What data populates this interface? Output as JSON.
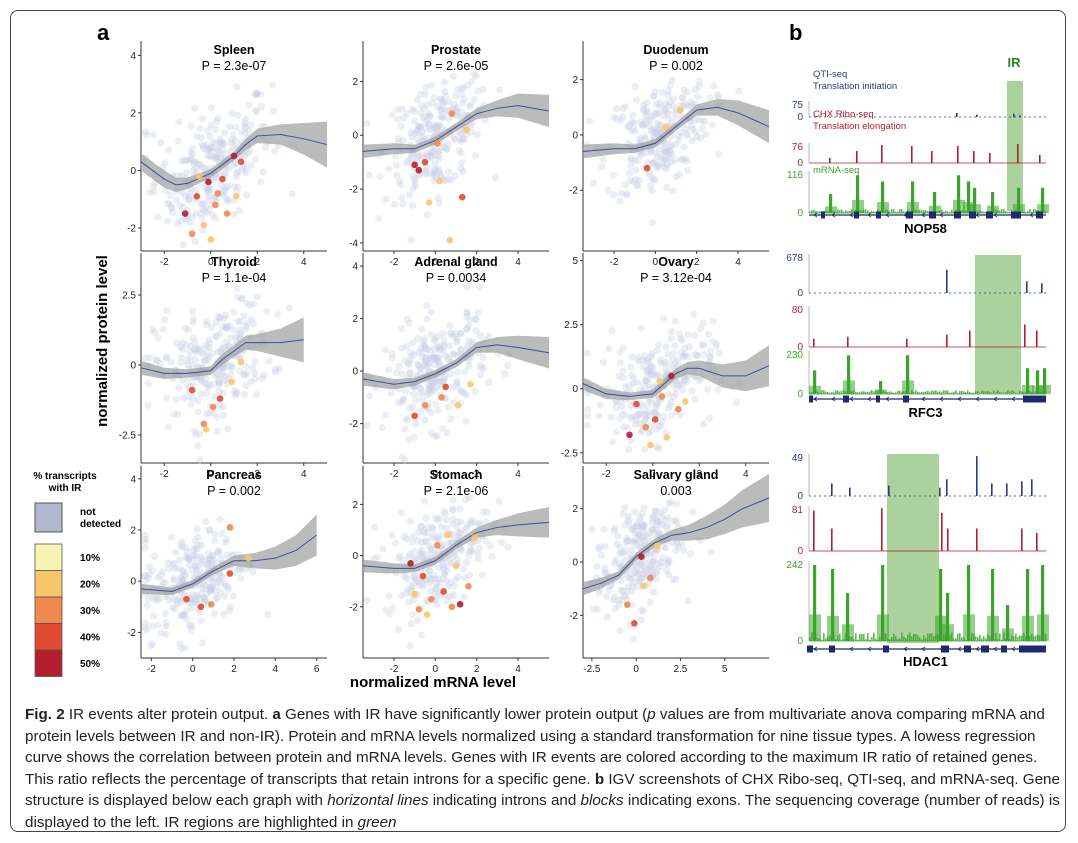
{
  "panel_labels": {
    "a": "a",
    "b": "b"
  },
  "axes": {
    "ylabel": "normalized protein level",
    "xlabel": "normalized mRNA level"
  },
  "legend": {
    "title_line1": "% transcripts",
    "title_line2": "with IR",
    "not_detected_line1": "not",
    "not_detected_line2": "detected",
    "items": [
      {
        "label": "10%",
        "color": "#f8f4b4"
      },
      {
        "label": "20%",
        "color": "#f9c56b"
      },
      {
        "label": "30%",
        "color": "#f0894e"
      },
      {
        "label": "40%",
        "color": "#e14a32"
      },
      {
        "label": "50%",
        "color": "#b21e2b"
      }
    ],
    "not_detected_color": "#b3b8d2"
  },
  "colors": {
    "point_gray": "#c9cfe6",
    "curve": "#3a4fa0",
    "ci_band": "#9e9e9e",
    "ir_highlight": "#9cc98b",
    "qti": "#273a8c",
    "chx": "#b21e2b",
    "mrna": "#3aa52a"
  },
  "chart_data": [
    {
      "type": "scatter",
      "title": "Spleen",
      "pvalue": "P = 2.3e-07",
      "xlim": [
        -3,
        5
      ],
      "ylim": [
        -2.8,
        4.5
      ],
      "xticks": [
        -2,
        0,
        2,
        4
      ],
      "yticks": [
        -2,
        0,
        2,
        4
      ],
      "curve_x": [
        -3,
        -2,
        -1.5,
        -1,
        0,
        1,
        1.5,
        2,
        3,
        4,
        5
      ],
      "curve_y": [
        0.3,
        -0.3,
        -0.5,
        -0.45,
        -0.1,
        0.5,
        0.9,
        1.2,
        1.25,
        1.1,
        0.9
      ],
      "band": [
        0.3,
        0.3,
        0.25,
        0.2,
        0.15,
        0.15,
        0.2,
        0.25,
        0.35,
        0.55,
        0.8
      ],
      "ir_points": [
        [
          -1.1,
          -1.5,
          5
        ],
        [
          -0.1,
          -0.4,
          5
        ],
        [
          1.0,
          0.5,
          5
        ],
        [
          1.3,
          0.3,
          4
        ],
        [
          0.5,
          -0.3,
          4
        ],
        [
          -0.6,
          -0.9,
          4
        ],
        [
          0.2,
          -1.2,
          3
        ],
        [
          -0.8,
          -2.2,
          3
        ],
        [
          0.7,
          -1.5,
          3
        ],
        [
          0.3,
          -0.8,
          3
        ],
        [
          -0.3,
          -1.9,
          2
        ],
        [
          1.1,
          -0.9,
          2
        ],
        [
          0.0,
          -2.4,
          2
        ],
        [
          -0.5,
          -0.2,
          2
        ]
      ]
    },
    {
      "type": "scatter",
      "title": "Prostate",
      "pvalue": "P = 2.6e-05",
      "xlim": [
        -3.5,
        5.5
      ],
      "ylim": [
        -4.3,
        3.5
      ],
      "xticks": [
        -2,
        0,
        2,
        4
      ],
      "yticks": [
        -4,
        -2,
        0,
        2
      ],
      "curve_x": [
        -3.5,
        -2,
        -1,
        0,
        1,
        2,
        3,
        4,
        5.5
      ],
      "curve_y": [
        -0.6,
        -0.5,
        -0.5,
        -0.2,
        0.3,
        0.8,
        1.0,
        1.1,
        0.9
      ],
      "band": [
        0.25,
        0.2,
        0.15,
        0.15,
        0.15,
        0.2,
        0.3,
        0.45,
        0.6
      ],
      "ir_points": [
        [
          -1.0,
          -1.1,
          5
        ],
        [
          -0.8,
          -1.3,
          5
        ],
        [
          1.3,
          -2.3,
          4
        ],
        [
          -0.5,
          -1.0,
          4
        ],
        [
          0.1,
          -0.3,
          3
        ],
        [
          0.8,
          0.8,
          3
        ],
        [
          -0.3,
          -2.5,
          2
        ],
        [
          0.7,
          -3.9,
          2
        ],
        [
          1.5,
          0.2,
          2
        ],
        [
          0.2,
          -1.7,
          2
        ]
      ]
    },
    {
      "type": "scatter",
      "title": "Duodenum",
      "pvalue": "P = 0.002",
      "xlim": [
        -3.5,
        5.5
      ],
      "ylim": [
        -4.2,
        3.4
      ],
      "xticks": [
        -2,
        0,
        2,
        4
      ],
      "yticks": [
        -2,
        0,
        2
      ],
      "curve_x": [
        -3.5,
        -2,
        -1,
        0,
        1,
        2,
        3,
        4,
        5.5
      ],
      "curve_y": [
        -0.6,
        -0.5,
        -0.5,
        -0.3,
        0.3,
        0.9,
        1.0,
        0.8,
        0.3
      ],
      "band": [
        0.25,
        0.2,
        0.15,
        0.15,
        0.15,
        0.2,
        0.3,
        0.45,
        0.6
      ],
      "ir_points": [
        [
          -0.4,
          -1.2,
          4
        ],
        [
          1.2,
          0.9,
          2
        ],
        [
          0.5,
          0.3,
          2
        ]
      ]
    },
    {
      "type": "scatter",
      "title": "Thyroid",
      "pvalue": "P = 1.1e-04",
      "xlim": [
        -3,
        5
      ],
      "ylim": [
        -3.5,
        4
      ],
      "xticks": [
        -2,
        0,
        2,
        4
      ],
      "yticks": [
        -2.5,
        0,
        2.5
      ],
      "curve_x": [
        -3,
        -2,
        -1,
        0,
        0.5,
        1,
        1.5,
        2,
        3,
        4
      ],
      "curve_y": [
        -0.1,
        -0.3,
        -0.3,
        -0.2,
        0.2,
        0.5,
        0.8,
        0.8,
        0.8,
        0.9
      ],
      "band": [
        0.25,
        0.2,
        0.15,
        0.15,
        0.2,
        0.2,
        0.25,
        0.3,
        0.5,
        0.8
      ],
      "ir_points": [
        [
          -0.8,
          -0.9,
          4
        ],
        [
          0.4,
          -1.2,
          4
        ],
        [
          0.1,
          -1.5,
          3
        ],
        [
          -0.3,
          -2.1,
          3
        ],
        [
          -0.2,
          -2.3,
          2
        ],
        [
          0.9,
          -0.6,
          2
        ],
        [
          1.3,
          0.1,
          2
        ]
      ]
    },
    {
      "type": "scatter",
      "title": "Adrenal gland",
      "pvalue": "P = 0.0034",
      "xlim": [
        -3.5,
        5.5
      ],
      "ylim": [
        -3.5,
        4.5
      ],
      "xticks": [
        -2,
        0,
        2,
        4
      ],
      "yticks": [
        -2,
        0,
        2,
        4
      ],
      "curve_x": [
        -3.5,
        -2,
        -1,
        0,
        1,
        2,
        3,
        4,
        5.5
      ],
      "curve_y": [
        -0.3,
        -0.5,
        -0.4,
        -0.1,
        0.3,
        0.9,
        1.0,
        0.9,
        0.7
      ],
      "band": [
        0.25,
        0.2,
        0.15,
        0.15,
        0.15,
        0.2,
        0.3,
        0.45,
        0.6
      ],
      "ir_points": [
        [
          -1.0,
          -1.7,
          4
        ],
        [
          0.5,
          -0.6,
          4
        ],
        [
          -0.5,
          -1.3,
          3
        ],
        [
          0.3,
          -1.0,
          3
        ],
        [
          1.1,
          -1.3,
          2
        ],
        [
          1.7,
          -0.5,
          2
        ]
      ]
    },
    {
      "type": "scatter",
      "title": "Ovary",
      "pvalue": "P = 3.12e-04",
      "xlim": [
        -3,
        5
      ],
      "ylim": [
        -2.9,
        5.3
      ],
      "xticks": [
        -2,
        0,
        2,
        4
      ],
      "yticks": [
        -2.5,
        0,
        2.5,
        5
      ],
      "curve_x": [
        -3,
        -2,
        -1,
        0,
        0.5,
        1,
        1.5,
        2,
        3,
        4,
        5
      ],
      "curve_y": [
        0.2,
        -0.2,
        -0.3,
        -0.2,
        0.2,
        0.6,
        0.8,
        0.8,
        0.5,
        0.5,
        0.9
      ],
      "band": [
        0.25,
        0.2,
        0.15,
        0.15,
        0.2,
        0.2,
        0.25,
        0.3,
        0.45,
        0.6,
        0.8
      ],
      "ir_points": [
        [
          -1.0,
          -1.8,
          5
        ],
        [
          0.8,
          0.5,
          5
        ],
        [
          0.1,
          -1.2,
          4
        ],
        [
          -0.7,
          -0.6,
          4
        ],
        [
          0.4,
          -0.3,
          3
        ],
        [
          -0.3,
          -1.5,
          3
        ],
        [
          1.1,
          -0.8,
          3
        ],
        [
          0.6,
          -1.9,
          2
        ],
        [
          -0.1,
          -2.2,
          2
        ],
        [
          1.4,
          -0.5,
          2
        ],
        [
          0.3,
          0.3,
          2
        ]
      ]
    },
    {
      "type": "scatter",
      "title": "Pancreas",
      "pvalue": "P = 0.002",
      "xlim": [
        -2.5,
        6.5
      ],
      "ylim": [
        -3,
        4.5
      ],
      "xticks": [
        -2,
        0,
        2,
        4,
        6
      ],
      "yticks": [
        -2,
        0,
        2,
        4
      ],
      "curve_x": [
        -2.5,
        -1,
        0,
        1,
        2,
        3,
        4,
        5,
        6
      ],
      "curve_y": [
        -0.3,
        -0.4,
        -0.1,
        0.4,
        0.8,
        0.8,
        0.9,
        1.2,
        1.8
      ],
      "band": [
        0.2,
        0.15,
        0.15,
        0.15,
        0.2,
        0.3,
        0.45,
        0.6,
        0.8
      ],
      "ir_points": [
        [
          0.4,
          -1.0,
          4
        ],
        [
          -0.3,
          -0.7,
          4
        ],
        [
          1.8,
          0.3,
          4
        ],
        [
          0.9,
          -0.9,
          3
        ],
        [
          1.8,
          2.1,
          3
        ],
        [
          2.7,
          0.9,
          2
        ]
      ]
    },
    {
      "type": "scatter",
      "title": "Stomach",
      "pvalue": "P = 2.1e-06",
      "xlim": [
        -3.5,
        5.5
      ],
      "ylim": [
        -4,
        3.5
      ],
      "xticks": [
        -2,
        0,
        2,
        4
      ],
      "yticks": [
        -2,
        0,
        2
      ],
      "curve_x": [
        -3.5,
        -2,
        -1,
        0,
        1,
        2,
        3,
        4,
        5.5
      ],
      "curve_y": [
        -0.4,
        -0.5,
        -0.5,
        -0.2,
        0.4,
        0.9,
        1.1,
        1.2,
        1.3
      ],
      "band": [
        0.25,
        0.2,
        0.15,
        0.15,
        0.15,
        0.2,
        0.3,
        0.45,
        0.6
      ],
      "ir_points": [
        [
          -1.2,
          -0.3,
          5
        ],
        [
          1.2,
          -1.9,
          5
        ],
        [
          0.4,
          -1.4,
          4
        ],
        [
          -0.6,
          -0.8,
          4
        ],
        [
          0.8,
          -2.0,
          3
        ],
        [
          -0.2,
          -1.7,
          3
        ],
        [
          1.6,
          -1.2,
          3
        ],
        [
          0.1,
          0.4,
          3
        ],
        [
          -0.8,
          -2.1,
          3
        ],
        [
          1.0,
          -0.4,
          2
        ],
        [
          -0.4,
          -2.3,
          2
        ],
        [
          0.6,
          0.8,
          2
        ],
        [
          1.9,
          0.7,
          2
        ],
        [
          -1.0,
          -1.5,
          2
        ]
      ]
    },
    {
      "type": "scatter",
      "title": "Salivary gland",
      "pvalue": "0.003",
      "xlim": [
        -3,
        7.5
      ],
      "ylim": [
        -3.6,
        3.6
      ],
      "xticks": [
        -2.5,
        0,
        2.5,
        5
      ],
      "yticks": [
        -2,
        0,
        2
      ],
      "curve_x": [
        -3,
        -2,
        -1,
        0,
        1,
        2,
        3,
        4,
        5,
        6,
        7.5
      ],
      "curve_y": [
        -1.0,
        -0.8,
        -0.5,
        0.2,
        0.7,
        1.0,
        1.1,
        1.3,
        1.6,
        2.0,
        2.4
      ],
      "band": [
        0.25,
        0.2,
        0.15,
        0.15,
        0.15,
        0.2,
        0.3,
        0.45,
        0.55,
        0.7,
        0.9
      ],
      "ir_points": [
        [
          0.3,
          0.2,
          5
        ],
        [
          -0.1,
          -2.3,
          4
        ],
        [
          0.8,
          -0.6,
          3
        ],
        [
          -0.5,
          -1.6,
          3
        ],
        [
          1.2,
          0.6,
          2
        ],
        [
          0.4,
          -0.9,
          2
        ]
      ]
    }
  ],
  "igv": {
    "ir_label": "IR",
    "genes": [
      {
        "name": "NOP58",
        "tracks": [
          {
            "kind": "qti",
            "max": "75",
            "zero": "0",
            "label1": "QTI-seq",
            "label2": "Translation initiation"
          },
          {
            "kind": "chx",
            "max": "76",
            "zero": "0",
            "label1": "CHX Ribo-seq",
            "label2": "Translation elongation"
          },
          {
            "kind": "mrna",
            "max": "116",
            "zero": "0",
            "label1": "mRNA-seq"
          }
        ]
      },
      {
        "name": "RFC3",
        "tracks": [
          {
            "kind": "qti",
            "max": "678",
            "zero": "0"
          },
          {
            "kind": "chx",
            "max": "80",
            "zero": "0"
          },
          {
            "kind": "mrna",
            "max": "230",
            "zero": "0"
          }
        ]
      },
      {
        "name": "HDAC1",
        "tracks": [
          {
            "kind": "qti",
            "max": "49",
            "zero": "0"
          },
          {
            "kind": "chx",
            "max": "81",
            "zero": "0"
          },
          {
            "kind": "mrna",
            "max": "242",
            "zero": "0"
          }
        ]
      }
    ]
  },
  "caption": {
    "fig": "Fig. 2",
    "t1": " IR events alter protein output. ",
    "a": "a",
    "t2": " Genes with IR have significantly lower protein output (",
    "p": "p",
    "t3": " values are from multivariate anova comparing mRNA and protein levels between IR and non-IR). Protein and mRNA levels normalized using a standard transformation for nine tissue types. A lowess regression curve shows the correlation between protein and mRNA levels. Genes with IR events are colored according to the maximum IR ratio of retained genes. This ratio reflects the percentage of transcripts that retain introns for a specific gene. ",
    "b": "b",
    "t4": " IGV screenshots of CHX Ribo-seq, QTI-seq, and mRNA-seq. Gene structure is displayed below each graph with ",
    "hl": "horizontal lines",
    "t5": " indicating introns and ",
    "bl": "blocks",
    "t6": " indicating exons. The sequencing coverage (number of reads) is displayed to the left. IR regions are highlighted in ",
    "green": "green"
  }
}
